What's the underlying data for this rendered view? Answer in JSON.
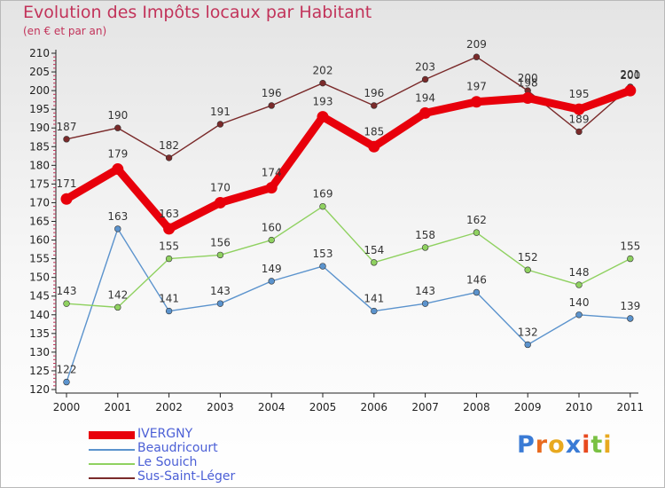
{
  "title": "Evolution des Impôts locaux par Habitant",
  "subtitle": "(en € et par an)",
  "brand": "Proxiti",
  "chart_data": {
    "type": "line",
    "title": "Evolution des Impôts locaux par Habitant",
    "subtitle": "(en € et par an)",
    "xlabel": "",
    "ylabel": "",
    "categories": [
      "2000",
      "2001",
      "2002",
      "2003",
      "2004",
      "2005",
      "2006",
      "2007",
      "2008",
      "2009",
      "2010",
      "2011"
    ],
    "ylim": [
      120,
      210
    ],
    "ytick_step": 5,
    "grid": false,
    "legend_position": "bottom-left",
    "series": [
      {
        "name": "Sus-Saint-Léger",
        "color": "#7a2a2a",
        "values": [
          187,
          190,
          182,
          191,
          196,
          202,
          196,
          203,
          209,
          200,
          189,
          201
        ]
      },
      {
        "name": "Beaudricourt",
        "color": "#5b93cd",
        "values": [
          122,
          163,
          141,
          143,
          149,
          153,
          141,
          143,
          146,
          132,
          140,
          139
        ]
      },
      {
        "name": "Le Souich",
        "color": "#8fd160",
        "values": [
          143,
          142,
          155,
          156,
          160,
          169,
          154,
          158,
          162,
          152,
          148,
          155
        ]
      },
      {
        "name": "IVERGNY",
        "color": "#e8000b",
        "values": [
          171,
          179,
          163,
          170,
          174,
          193,
          185,
          194,
          197,
          198,
          195,
          200
        ]
      }
    ]
  },
  "legend": {
    "items": [
      {
        "name": "IVERGNY",
        "color": "#e8000b"
      },
      {
        "name": "Beaudricourt",
        "color": "#5b93cd"
      },
      {
        "name": "Le Souich",
        "color": "#8fd160"
      },
      {
        "name": "Sus-Saint-Léger",
        "color": "#7a2a2a"
      }
    ]
  }
}
